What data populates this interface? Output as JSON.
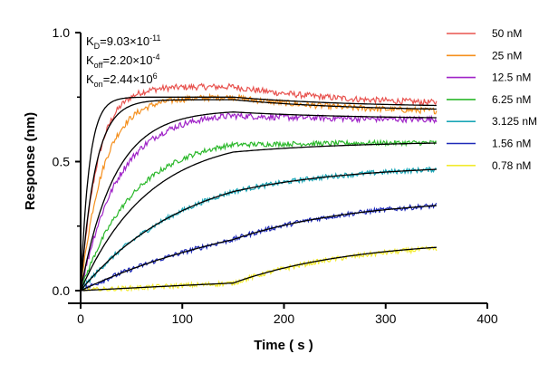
{
  "chart_data": {
    "type": "line",
    "xlabel": "Time ( s )",
    "ylabel": "Response (nm)",
    "xlim": [
      0,
      400
    ],
    "ylim": [
      0,
      1.0
    ],
    "x_ticks": [
      "0",
      "100",
      "200",
      "300",
      "400"
    ],
    "y_ticks": [
      "0.0",
      "0.5",
      "1.0"
    ],
    "grid": false,
    "legend_position": "right",
    "association_end_s": 150,
    "end_time_s": 350,
    "kinetics": {
      "kd": {
        "prefix": "K",
        "sub": "D",
        "mid": "=9.03×10",
        "exp": "-11"
      },
      "koff": {
        "prefix": "K",
        "sub": "off",
        "mid": "=2.20×10",
        "exp": "-4"
      },
      "kon": {
        "prefix": "K",
        "sub": "on",
        "mid": "=2.44×10",
        "exp": "6"
      }
    },
    "fit_color": "#000000",
    "series": [
      {
        "name": "50 nM",
        "color": "#e8534f",
        "plateau": 0.79,
        "end": 0.715,
        "k": 0.06,
        "fit_plateau": 0.75,
        "fit_end": 0.71,
        "fit_k": 0.12
      },
      {
        "name": "25 nM",
        "color": "#f5901e",
        "plateau": 0.75,
        "end": 0.685,
        "k": 0.045,
        "fit_plateau": 0.74,
        "fit_end": 0.695,
        "fit_k": 0.07
      },
      {
        "name": "12.5 nM",
        "color": "#a024c8",
        "plateau": 0.69,
        "end": 0.66,
        "k": 0.027,
        "fit_plateau": 0.7,
        "fit_end": 0.665,
        "fit_k": 0.03
      },
      {
        "name": "6.25 nM",
        "color": "#2bb82b",
        "plateau": 0.6,
        "end": 0.575,
        "k": 0.019,
        "fit_plateau": 0.6,
        "fit_end": 0.58,
        "fit_k": 0.015
      },
      {
        "name": "3.125 nM",
        "color": "#1aa6b7",
        "plateau": 0.505,
        "end": 0.49,
        "k": 0.0095,
        "fit_plateau": 0.505,
        "fit_end": 0.49,
        "fit_k": 0.0095
      },
      {
        "name": "1.56 nM",
        "color": "#1f2ab8",
        "plateau": 0.375,
        "end": 0.36,
        "k": 0.005,
        "fit_plateau": 0.375,
        "fit_end": 0.36,
        "fit_k": 0.005
      },
      {
        "name": "0.78 nM",
        "color": "#f2ea2e",
        "plateau": 0.205,
        "end": 0.195,
        "k": 0.001,
        "fit_plateau": 0.21,
        "fit_end": 0.2,
        "fit_k": 0.001
      }
    ]
  }
}
